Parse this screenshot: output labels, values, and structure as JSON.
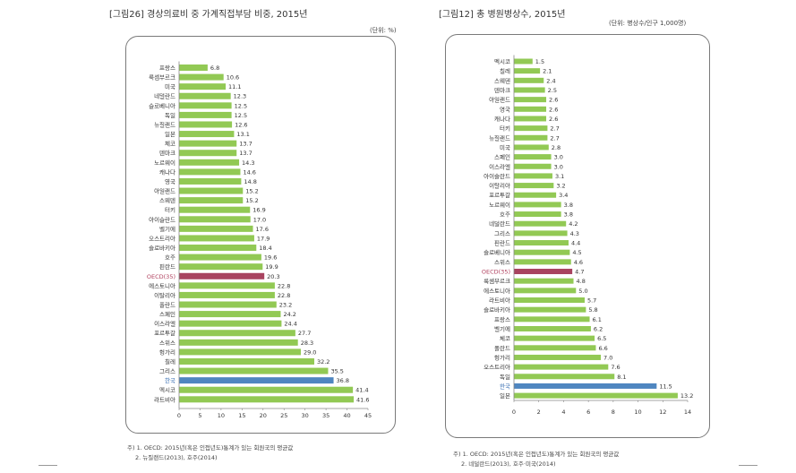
{
  "panels": [
    {
      "caption": "[그림26] 경상의료비 중 가계직접부담 비중, 2015년",
      "unit": "(단위: %)",
      "notes": [
        "주) 1. OECD: 2015년(혹은 인접년도)통계가 있는 회원국의 평균값",
        "2. 뉴질랜드(2013), 호주(2014)"
      ]
    },
    {
      "caption": "[그림12] 총 병원병상수, 2015년",
      "unit": "(단위: 병상수/인구 1,000명)",
      "notes": [
        "주) 1. OECD: 2015년(혹은 인접년도)통계가 있는 회원국의 평균값",
        "2. 네덜란드(2013), 호주·미국(2014)"
      ]
    }
  ],
  "chart_data": [
    {
      "type": "bar",
      "orientation": "horizontal",
      "title": "경상의료비 중 가계직접부담 비중, 2015년",
      "categories": [
        "프랑스",
        "룩셈부르크",
        "미국",
        "네덜란드",
        "슬로베니아",
        "독일",
        "뉴질랜드",
        "일본",
        "체코",
        "덴마크",
        "노르웨이",
        "캐나다",
        "영국",
        "아일랜드",
        "스웨덴",
        "터키",
        "아이슬란드",
        "벨기에",
        "오스트리아",
        "슬로바키아",
        "호주",
        "핀란드",
        "OECD(35)",
        "에스토니아",
        "이탈리아",
        "폴란드",
        "스페인",
        "이스라엘",
        "포르투갈",
        "스위스",
        "헝가리",
        "칠레",
        "그리스",
        "한국",
        "멕시코",
        "라트비아"
      ],
      "values": [
        6.8,
        10.6,
        11.1,
        12.3,
        12.5,
        12.5,
        12.6,
        13.1,
        13.7,
        13.7,
        14.3,
        14.6,
        14.8,
        15.2,
        15.2,
        16.9,
        17.0,
        17.6,
        17.9,
        18.4,
        19.6,
        19.9,
        20.3,
        22.8,
        22.8,
        23.2,
        24.2,
        24.4,
        27.7,
        28.3,
        29.0,
        32.2,
        35.5,
        36.8,
        41.4,
        41.6
      ],
      "value_labels": [
        "6.8",
        "10.6",
        "11.1",
        "12.3",
        "12.5",
        "12.5",
        "12.6",
        "13.1",
        "13.7",
        "13.7",
        "14.3",
        "14.6",
        "14.8",
        "15.2",
        "15.2",
        "16.9",
        "17.0",
        "17.6",
        "17.9",
        "18.4",
        "19.6",
        "19.9",
        "20.3",
        "22.8",
        "22.8",
        "23.2",
        "24.2",
        "24.4",
        "27.7",
        "28.3",
        "29.0",
        "32.2",
        "35.5",
        "36.8",
        "41.4",
        "41.6"
      ],
      "highlight": {
        "OECD(35)": "#a8435f",
        "한국": "#4f86c0"
      },
      "bar_color": "#92c954",
      "label_colors": {
        "OECD(35)": "#b0405e",
        "한국": "#3d72b4"
      },
      "xlim": [
        0,
        45
      ],
      "xticks": [
        "0",
        "5",
        "10",
        "15",
        "20",
        "25",
        "30",
        "35",
        "40",
        "45"
      ],
      "grid": false
    },
    {
      "type": "bar",
      "orientation": "horizontal",
      "title": "총 병원병상수, 2015년",
      "categories": [
        "멕시코",
        "칠레",
        "스웨덴",
        "덴마크",
        "아일랜드",
        "영국",
        "캐나다",
        "터키",
        "뉴질랜드",
        "미국",
        "스페인",
        "이스라엘",
        "아이슬란드",
        "이탈리아",
        "포르투갈",
        "노르웨이",
        "호주",
        "네덜란드",
        "그리스",
        "핀란드",
        "슬로베니아",
        "스위스",
        "OECD(35)",
        "룩셈부르크",
        "에스토니아",
        "라트비아",
        "슬로바키아",
        "프랑스",
        "벨기에",
        "체코",
        "폴란드",
        "헝가리",
        "오스트리아",
        "독일",
        "한국",
        "일본"
      ],
      "values": [
        1.5,
        2.1,
        2.4,
        2.5,
        2.6,
        2.6,
        2.6,
        2.7,
        2.7,
        2.8,
        3.0,
        3.0,
        3.1,
        3.2,
        3.4,
        3.8,
        3.8,
        4.2,
        4.3,
        4.4,
        4.5,
        4.6,
        4.7,
        4.8,
        5.0,
        5.7,
        5.8,
        6.1,
        6.2,
        6.5,
        6.6,
        7.0,
        7.6,
        8.1,
        11.5,
        13.2
      ],
      "value_labels": [
        "1.5",
        "2.1",
        "2.4",
        "2.5",
        "2.6",
        "2.6",
        "2.6",
        "2.7",
        "2.7",
        "2.8",
        "3.0",
        "3.0",
        "3.1",
        "3.2",
        "3.4",
        "3.8",
        "3.8",
        "4.2",
        "4.3",
        "4.4",
        "4.5",
        "4.6",
        "4.7",
        "4.8",
        "5.0",
        "5.7",
        "5.8",
        "6.1",
        "6.2",
        "6.5",
        "6.6",
        "7.0",
        "7.6",
        "8.1",
        "11.5",
        "13.2"
      ],
      "highlight": {
        "OECD(35)": "#a8435f",
        "한국": "#4f86c0"
      },
      "bar_color": "#92c954",
      "label_colors": {
        "OECD(35)": "#b0405e",
        "한국": "#3d72b4"
      },
      "xlim": [
        0,
        14
      ],
      "xticks": [
        "0",
        "2",
        "4",
        "6",
        "8",
        "10",
        "12",
        "14"
      ],
      "grid": false
    }
  ]
}
